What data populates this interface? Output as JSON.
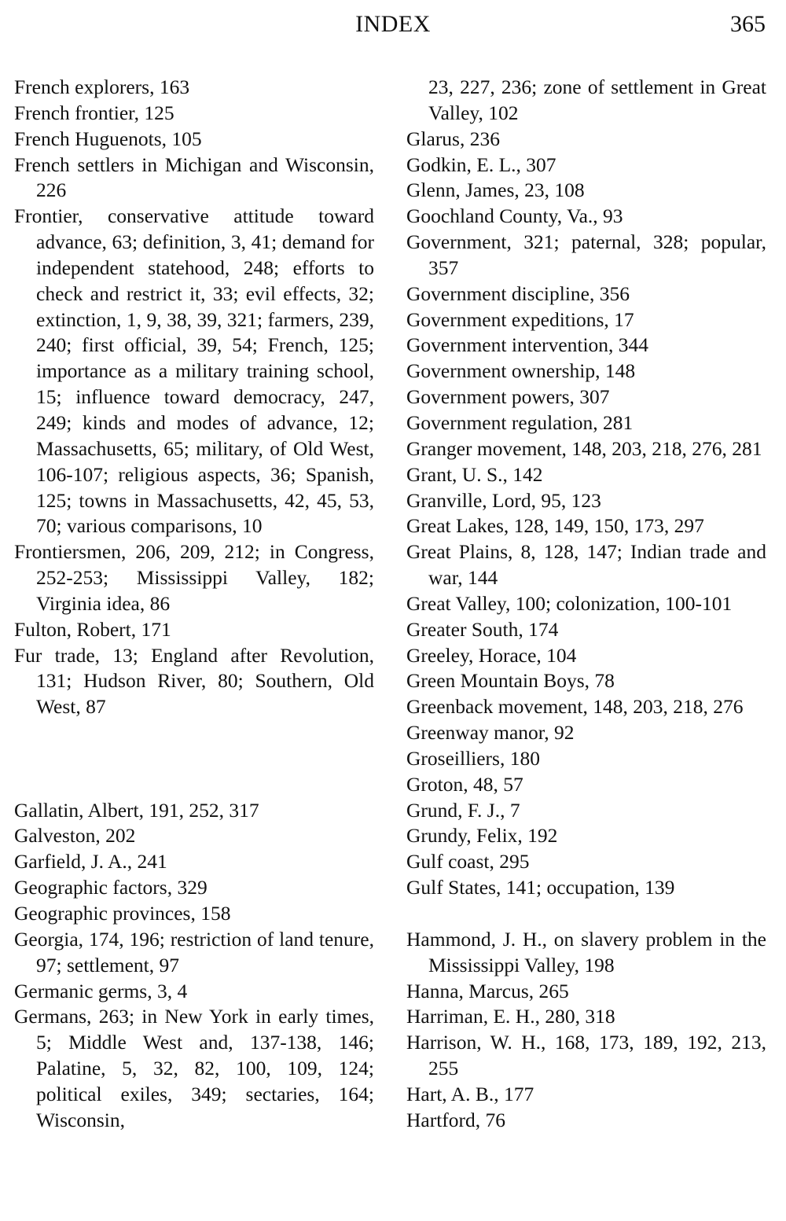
{
  "header": {
    "title": "INDEX",
    "page_number": "365"
  },
  "left_column": {
    "group_f": [
      "French explorers, 163",
      "French frontier, 125",
      "French Huguenots, 105",
      "French settlers in Michigan and Wisconsin, 226",
      "Frontier, conservative attitude toward advance, 63; definition, 3, 41; demand for independent statehood, 248; efforts to check and restrict it, 33; evil effects, 32; extinction, 1, 9, 38, 39, 321; farmers, 239, 240; first official, 39, 54; French, 125; importance as a military training school, 15; influence toward democracy, 247, 249; kinds and modes of advance, 12; Massachusetts, 65; military, of Old West, 106-107; religious aspects, 36; Spanish, 125; towns in Massachusetts, 42, 45, 53, 70; various comparisons, 10",
      "Frontiersmen, 206, 209, 212; in Congress, 252-253; Mississippi Valley, 182; Virginia idea, 86",
      "Fulton, Robert, 171",
      "Fur trade, 13; England after Revolution, 131; Hudson River, 80; Southern, Old West, 87"
    ],
    "group_g": [
      "Gallatin, Albert, 191, 252, 317",
      "Galveston, 202",
      "Garfield, J. A., 241",
      "Geographic factors, 329",
      "Geographic provinces, 158",
      "Georgia, 174, 196; restriction of land tenure, 97; settlement, 97",
      "Germanic germs, 3, 4",
      "Germans, 263; in New York in early times, 5; Middle West and, 137-138, 146; Palatine, 5, 32, 82, 100, 109, 124; political exiles, 349; sectaries, 164; Wisconsin,"
    ]
  },
  "right_column": {
    "continuation": "23, 227, 236; zone of settlement in Great Valley, 102",
    "group_g": [
      "Glarus, 236",
      "Godkin, E. L., 307",
      "Glenn, James, 23, 108",
      "Goochland County, Va., 93",
      "Government, 321; paternal, 328; popular, 357",
      "Government discipline, 356",
      "Government expeditions, 17",
      "Government intervention, 344",
      "Government ownership, 148",
      "Government powers, 307",
      "Government regulation, 281",
      "Granger movement, 148, 203, 218, 276, 281",
      "Grant, U. S., 142",
      "Granville, Lord, 95, 123",
      "Great Lakes, 128, 149, 150, 173, 297",
      "Great Plains, 8, 128, 147; Indian trade and war, 144",
      "Great Valley, 100; colonization, 100-101",
      "Greater South, 174",
      "Greeley, Horace, 104",
      "Green Mountain Boys, 78",
      "Greenback movement, 148, 203, 218, 276",
      "Greenway manor, 92",
      "Groseilliers, 180",
      "Groton, 48, 57",
      "Grund, F. J., 7",
      "Grundy, Felix, 192",
      "Gulf coast, 295",
      "Gulf States, 141; occupation, 139"
    ],
    "group_h": [
      "Hammond, J. H., on slavery problem in the Mississippi Valley, 198",
      "Hanna, Marcus, 265",
      "Harriman, E. H., 280, 318",
      "Harrison, W. H., 168, 173, 189, 192, 213, 255",
      "Hart, A. B., 177",
      "Hartford, 76"
    ]
  }
}
